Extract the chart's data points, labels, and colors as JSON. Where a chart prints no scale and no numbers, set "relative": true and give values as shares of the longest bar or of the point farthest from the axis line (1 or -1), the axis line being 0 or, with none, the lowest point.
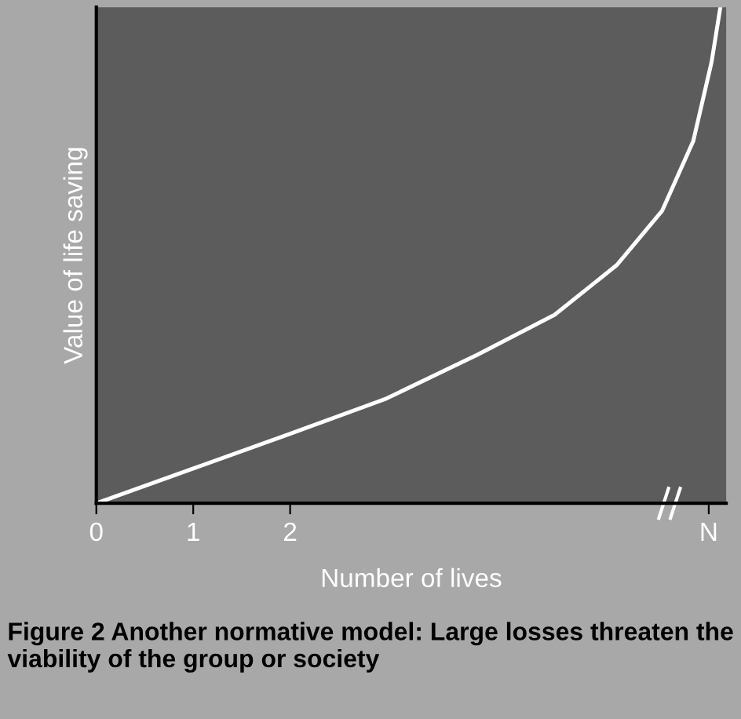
{
  "chart_data": {
    "type": "line",
    "relative": true,
    "xlabel": "Number of lives",
    "ylabel": "Value of life saving",
    "x": [
      0,
      1,
      2,
      2.98,
      3.94,
      4.73,
      5.37,
      5.84,
      6.16,
      6.35,
      6.44
    ],
    "series": [
      {
        "color": "#ffffff",
        "values": [
          0,
          0.07,
          0.14,
          0.21,
          0.3,
          0.38,
          0.48,
          0.59,
          0.73,
          0.89,
          1.0
        ]
      }
    ],
    "xlim": [
      0,
      6.5
    ],
    "xticks": [
      0,
      1,
      2,
      {
        "value": 6.32,
        "label": "N"
      }
    ],
    "grid": false,
    "legend": false,
    "marker": "none",
    "line_style": "solid",
    "annotations": [
      "Figure 2 Another normative model: Large losses threaten the viability of the group or society"
    ]
  }
}
